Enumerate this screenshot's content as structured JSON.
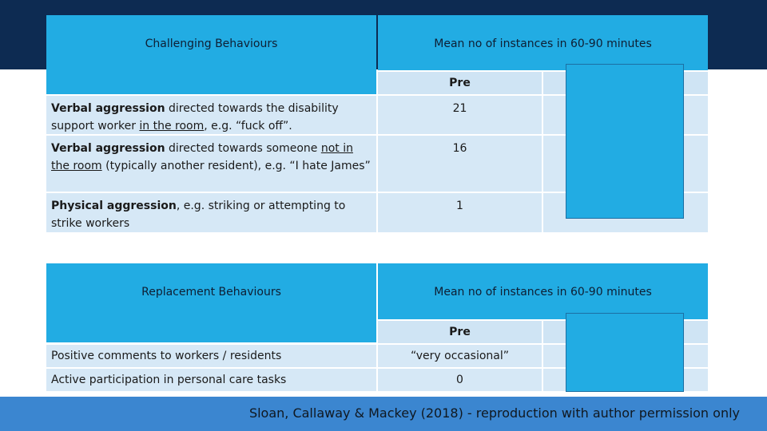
{
  "table1": {
    "header_left": "Challenging Behaviours",
    "header_right": "Mean no of instances in 60-90 minutes",
    "sub_pre": "Pre",
    "rows": [
      {
        "bold": "Verbal aggression",
        "t1": " directed towards the disability support worker ",
        "u1": "in the room",
        "t2": ", e.g. “fuck off”.",
        "pre": "21"
      },
      {
        "bold": "Verbal aggression",
        "t1": " directed towards someone ",
        "u1": "not in the room",
        "t2": " (typically another resident), e.g. “I hate James”",
        "pre": "16"
      },
      {
        "bold": "Physical aggression",
        "t1": ", e.g. striking or attempting to strike workers",
        "u1": "",
        "t2": "",
        "pre": "1"
      }
    ]
  },
  "table2": {
    "header_left": "Replacement Behaviours",
    "header_right": "Mean no of instances in 60-90 minutes",
    "sub_pre": "Pre",
    "rows": [
      {
        "label": "Positive comments to workers / residents",
        "pre": "“very occasional”"
      },
      {
        "label": "Active participation in personal care tasks",
        "pre": "0"
      }
    ]
  },
  "footer": "Sloan, Callaway & Mackey (2018) - reproduction with author permission only",
  "colors": {
    "header": "#22ace3",
    "band": "#0d2b52",
    "footer": "#3b86d0",
    "cell": "#d6e8f6"
  }
}
